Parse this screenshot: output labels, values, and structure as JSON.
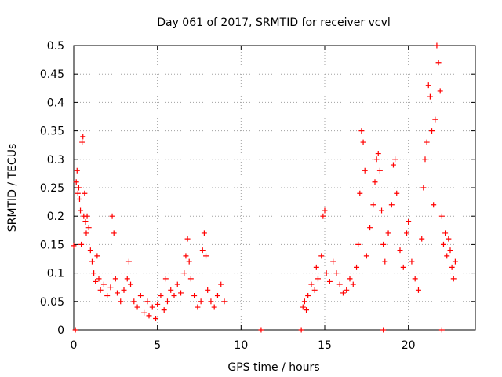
{
  "chart_data": {
    "type": "scatter",
    "title": "Day 061 of 2017, SRMTID for receiver vcvl",
    "xlabel": "GPS time / hours",
    "ylabel": "SRMTID / TECUs",
    "xlim": [
      0,
      24
    ],
    "ylim": [
      0,
      0.5
    ],
    "x_ticks": [
      0,
      5,
      10,
      15,
      20
    ],
    "x_tick_labels": [
      "0",
      "5",
      "10",
      "15",
      "20"
    ],
    "y_ticks": [
      0,
      0.05,
      0.1,
      0.15,
      0.2,
      0.25,
      0.3,
      0.35,
      0.4,
      0.45,
      0.5
    ],
    "y_tick_labels": [
      "0",
      "0.05",
      "0.1",
      "0.15",
      "0.2",
      "0.25",
      "0.3",
      "0.35",
      "0.4",
      "0.45",
      "0.5"
    ],
    "grid": true,
    "marker": "plus",
    "series": [
      {
        "name": "SRMTID",
        "color": "#ff0000",
        "points": [
          [
            0.0,
            0.148
          ],
          [
            0.1,
            0.0
          ],
          [
            0.15,
            0.26
          ],
          [
            0.2,
            0.28
          ],
          [
            0.25,
            0.24
          ],
          [
            0.3,
            0.25
          ],
          [
            0.35,
            0.23
          ],
          [
            0.4,
            0.21
          ],
          [
            0.45,
            0.15
          ],
          [
            0.5,
            0.33
          ],
          [
            0.55,
            0.34
          ],
          [
            0.6,
            0.2
          ],
          [
            0.65,
            0.24
          ],
          [
            0.7,
            0.19
          ],
          [
            0.75,
            0.17
          ],
          [
            0.8,
            0.2
          ],
          [
            0.9,
            0.18
          ],
          [
            1.0,
            0.14
          ],
          [
            1.1,
            0.12
          ],
          [
            1.2,
            0.1
          ],
          [
            1.3,
            0.085
          ],
          [
            1.4,
            0.13
          ],
          [
            1.5,
            0.09
          ],
          [
            1.6,
            0.07
          ],
          [
            1.8,
            0.08
          ],
          [
            2.0,
            0.06
          ],
          [
            2.2,
            0.075
          ],
          [
            2.3,
            0.2
          ],
          [
            2.4,
            0.17
          ],
          [
            2.5,
            0.09
          ],
          [
            2.6,
            0.065
          ],
          [
            2.8,
            0.05
          ],
          [
            3.0,
            0.07
          ],
          [
            3.2,
            0.09
          ],
          [
            3.3,
            0.12
          ],
          [
            3.4,
            0.08
          ],
          [
            3.6,
            0.05
          ],
          [
            3.8,
            0.04
          ],
          [
            4.0,
            0.06
          ],
          [
            4.2,
            0.03
          ],
          [
            4.4,
            0.05
          ],
          [
            4.5,
            0.025
          ],
          [
            4.7,
            0.04
          ],
          [
            4.9,
            0.02
          ],
          [
            5.0,
            0.045
          ],
          [
            5.2,
            0.06
          ],
          [
            5.4,
            0.035
          ],
          [
            5.5,
            0.09
          ],
          [
            5.6,
            0.05
          ],
          [
            5.8,
            0.07
          ],
          [
            6.0,
            0.06
          ],
          [
            6.2,
            0.08
          ],
          [
            6.4,
            0.065
          ],
          [
            6.6,
            0.1
          ],
          [
            6.7,
            0.13
          ],
          [
            6.8,
            0.16
          ],
          [
            6.9,
            0.12
          ],
          [
            7.0,
            0.09
          ],
          [
            7.2,
            0.06
          ],
          [
            7.4,
            0.04
          ],
          [
            7.6,
            0.05
          ],
          [
            7.7,
            0.14
          ],
          [
            7.8,
            0.17
          ],
          [
            7.9,
            0.13
          ],
          [
            8.0,
            0.07
          ],
          [
            8.2,
            0.05
          ],
          [
            8.4,
            0.04
          ],
          [
            8.6,
            0.06
          ],
          [
            8.8,
            0.08
          ],
          [
            9.0,
            0.05
          ],
          [
            11.2,
            0.0
          ],
          [
            13.6,
            0.0
          ],
          [
            13.7,
            0.04
          ],
          [
            13.8,
            0.05
          ],
          [
            13.9,
            0.035
          ],
          [
            14.0,
            0.06
          ],
          [
            14.2,
            0.08
          ],
          [
            14.4,
            0.07
          ],
          [
            14.5,
            0.11
          ],
          [
            14.6,
            0.09
          ],
          [
            14.8,
            0.13
          ],
          [
            14.9,
            0.2
          ],
          [
            15.0,
            0.21
          ],
          [
            15.1,
            0.1
          ],
          [
            15.3,
            0.085
          ],
          [
            15.5,
            0.12
          ],
          [
            15.7,
            0.1
          ],
          [
            15.9,
            0.08
          ],
          [
            16.1,
            0.065
          ],
          [
            16.3,
            0.07
          ],
          [
            16.5,
            0.09
          ],
          [
            16.7,
            0.08
          ],
          [
            16.9,
            0.11
          ],
          [
            17.0,
            0.15
          ],
          [
            17.1,
            0.24
          ],
          [
            17.2,
            0.35
          ],
          [
            17.3,
            0.33
          ],
          [
            17.4,
            0.28
          ],
          [
            17.5,
            0.13
          ],
          [
            17.7,
            0.18
          ],
          [
            17.9,
            0.22
          ],
          [
            18.0,
            0.26
          ],
          [
            18.1,
            0.3
          ],
          [
            18.2,
            0.31
          ],
          [
            18.3,
            0.28
          ],
          [
            18.4,
            0.21
          ],
          [
            18.5,
            0.15
          ],
          [
            18.6,
            0.12
          ],
          [
            18.8,
            0.17
          ],
          [
            19.0,
            0.22
          ],
          [
            19.1,
            0.29
          ],
          [
            19.2,
            0.3
          ],
          [
            19.3,
            0.24
          ],
          [
            19.5,
            0.14
          ],
          [
            19.7,
            0.11
          ],
          [
            19.9,
            0.17
          ],
          [
            20.0,
            0.19
          ],
          [
            20.2,
            0.12
          ],
          [
            20.4,
            0.09
          ],
          [
            20.6,
            0.07
          ],
          [
            20.8,
            0.16
          ],
          [
            20.9,
            0.25
          ],
          [
            21.0,
            0.3
          ],
          [
            21.1,
            0.33
          ],
          [
            21.2,
            0.43
          ],
          [
            21.3,
            0.41
          ],
          [
            21.4,
            0.35
          ],
          [
            21.5,
            0.22
          ],
          [
            21.6,
            0.37
          ],
          [
            21.7,
            0.5
          ],
          [
            21.8,
            0.47
          ],
          [
            21.9,
            0.42
          ],
          [
            22.0,
            0.2
          ],
          [
            22.1,
            0.15
          ],
          [
            22.2,
            0.17
          ],
          [
            22.3,
            0.13
          ],
          [
            22.4,
            0.16
          ],
          [
            22.5,
            0.14
          ],
          [
            22.6,
            0.11
          ],
          [
            22.7,
            0.09
          ],
          [
            22.8,
            0.12
          ],
          [
            18.5,
            0.0
          ],
          [
            22.0,
            0.0
          ]
        ]
      }
    ]
  }
}
